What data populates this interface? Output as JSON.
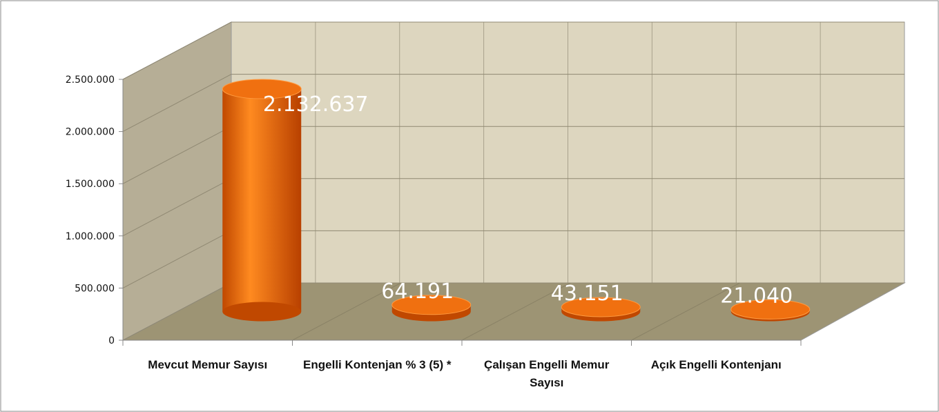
{
  "chart_data": {
    "type": "bar3d",
    "categories": [
      "Mevcut Memur Sayısı",
      "Engelli Kontenjan % 3 (5) *",
      "Çalışan Engelli Memur Sayısı",
      "Açık Engelli Kontenjanı"
    ],
    "values": [
      2132637,
      64191,
      43151,
      21040
    ],
    "value_labels": [
      "2.132.637",
      "64.191",
      "43.151",
      "21.040"
    ],
    "color": "#f07010",
    "ylim": [
      0,
      2500000
    ],
    "yticks": [
      0,
      {
        "value": 500000,
        "label": "500.000"
      },
      {
        "value": 1000000,
        "label": "1.000.000"
      },
      {
        "value": 1500000,
        "label": "1.500.000"
      },
      {
        "value": 2000000,
        "label": "2.000.000"
      },
      {
        "value": 2500000,
        "label": "2.500.000"
      }
    ],
    "grid": true
  }
}
